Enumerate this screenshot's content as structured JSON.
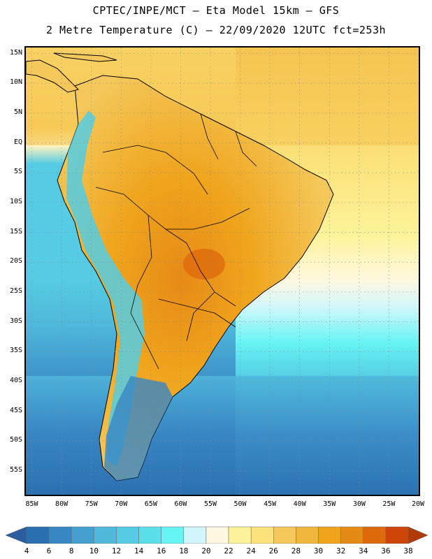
{
  "header": {
    "title_line1": "CPTEC/INPE/MCT –  Eta Model 15km – GFS",
    "title_line2": "2 Metre Temperature (C) – 22/09/2020 12UTC fct=253h"
  },
  "map": {
    "lon_range": [
      -86,
      -20
    ],
    "lat_range": [
      -59,
      16
    ],
    "lat_labels": [
      {
        "value": 15,
        "text": "15N"
      },
      {
        "value": 10,
        "text": "10N"
      },
      {
        "value": 5,
        "text": "5N"
      },
      {
        "value": 0,
        "text": "EQ"
      },
      {
        "value": -5,
        "text": "5S"
      },
      {
        "value": -10,
        "text": "10S"
      },
      {
        "value": -15,
        "text": "15S"
      },
      {
        "value": -20,
        "text": "20S"
      },
      {
        "value": -25,
        "text": "25S"
      },
      {
        "value": -30,
        "text": "30S"
      },
      {
        "value": -35,
        "text": "35S"
      },
      {
        "value": -40,
        "text": "40S"
      },
      {
        "value": -45,
        "text": "45S"
      },
      {
        "value": -50,
        "text": "50S"
      },
      {
        "value": -55,
        "text": "55S"
      }
    ],
    "lon_labels": [
      {
        "value": -85,
        "text": "85W"
      },
      {
        "value": -80,
        "text": "80W"
      },
      {
        "value": -75,
        "text": "75W"
      },
      {
        "value": -70,
        "text": "70W"
      },
      {
        "value": -65,
        "text": "65W"
      },
      {
        "value": -60,
        "text": "60W"
      },
      {
        "value": -55,
        "text": "55W"
      },
      {
        "value": -50,
        "text": "50W"
      },
      {
        "value": -45,
        "text": "45W"
      },
      {
        "value": -40,
        "text": "40W"
      },
      {
        "value": -35,
        "text": "35W"
      },
      {
        "value": -30,
        "text": "30W"
      },
      {
        "value": -25,
        "text": "25W"
      },
      {
        "value": -20,
        "text": "20W"
      }
    ],
    "grid": true
  },
  "colorbar": {
    "labels": [
      "4",
      "6",
      "8",
      "10",
      "12",
      "14",
      "16",
      "18",
      "20",
      "22",
      "24",
      "26",
      "28",
      "30",
      "32",
      "34",
      "36",
      "38"
    ],
    "colors": [
      "#2a6fb0",
      "#3886c4",
      "#45a0cf",
      "#4fb8db",
      "#55cce3",
      "#5be0ea",
      "#66f4f4",
      "#d2f6fb",
      "#fff8e0",
      "#fdf39a",
      "#fbe27a",
      "#f4c85a",
      "#efb83c",
      "#f0a41c",
      "#e68a16",
      "#df6a0c",
      "#cf4408"
    ],
    "low_color": "#2a5e9e",
    "high_color": "#b03a08"
  }
}
